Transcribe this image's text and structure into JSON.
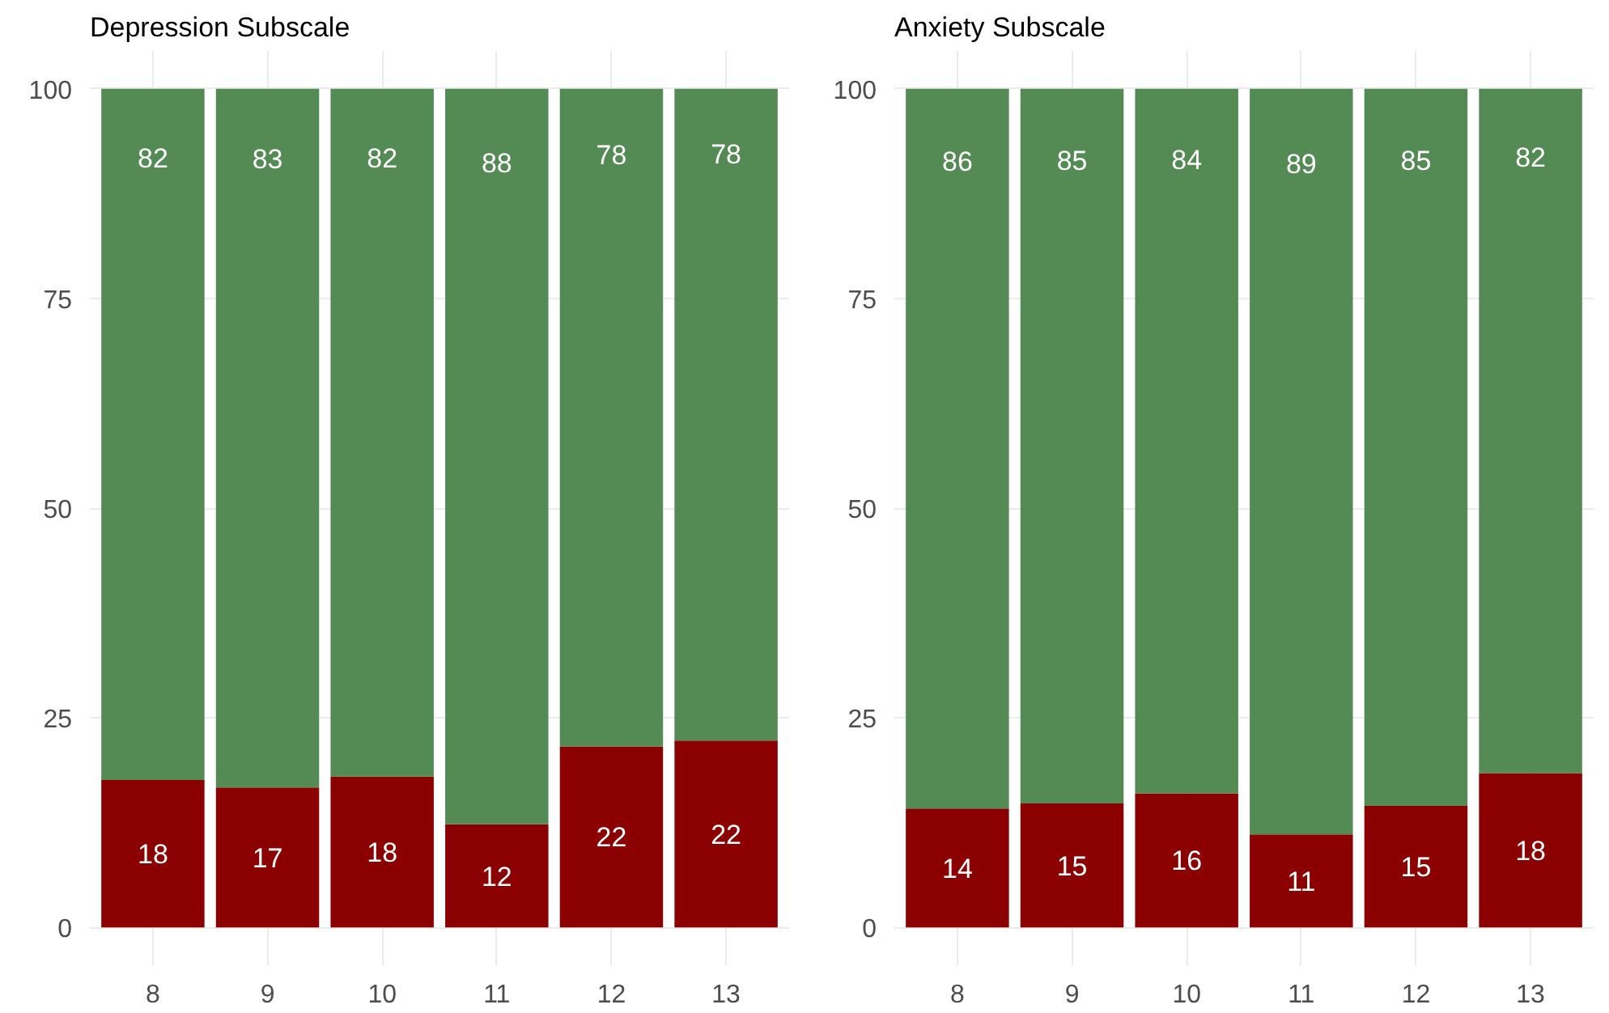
{
  "chart_data": [
    {
      "type": "bar",
      "title": "Depression Subscale",
      "categories": [
        "8",
        "9",
        "10",
        "11",
        "12",
        "13"
      ],
      "stacked": true,
      "ylim": [
        -4.5,
        104.5
      ],
      "yticks": [
        0,
        25,
        50,
        75,
        100
      ],
      "grid": true,
      "series": [
        {
          "color": "#8b0000",
          "values": [
            17.6,
            16.7,
            18,
            12.3,
            21.6,
            22.3
          ],
          "value_labels": [
            "18",
            "17",
            "18",
            "12",
            "22",
            "22"
          ]
        },
        {
          "color": "#548b54",
          "values": [
            82.4,
            83.3,
            82,
            87.7,
            78.4,
            77.7
          ],
          "value_labels": [
            "82",
            "83",
            "82",
            "88",
            "78",
            "78"
          ]
        }
      ]
    },
    {
      "type": "bar",
      "title": "Anxiety Subscale",
      "categories": [
        "8",
        "9",
        "10",
        "11",
        "12",
        "13"
      ],
      "stacked": true,
      "ylim": [
        -4.5,
        104.5
      ],
      "yticks": [
        0,
        25,
        50,
        75,
        100
      ],
      "grid": true,
      "series": [
        {
          "color": "#8b0000",
          "values": [
            14.2,
            14.8,
            16,
            11.1,
            14.5,
            18.4
          ],
          "value_labels": [
            "14",
            "15",
            "16",
            "11",
            "15",
            "18"
          ]
        },
        {
          "color": "#548b54",
          "values": [
            85.8,
            85.2,
            84,
            88.9,
            85.5,
            81.6
          ],
          "value_labels": [
            "86",
            "85",
            "84",
            "89",
            "85",
            "82"
          ]
        }
      ]
    }
  ]
}
